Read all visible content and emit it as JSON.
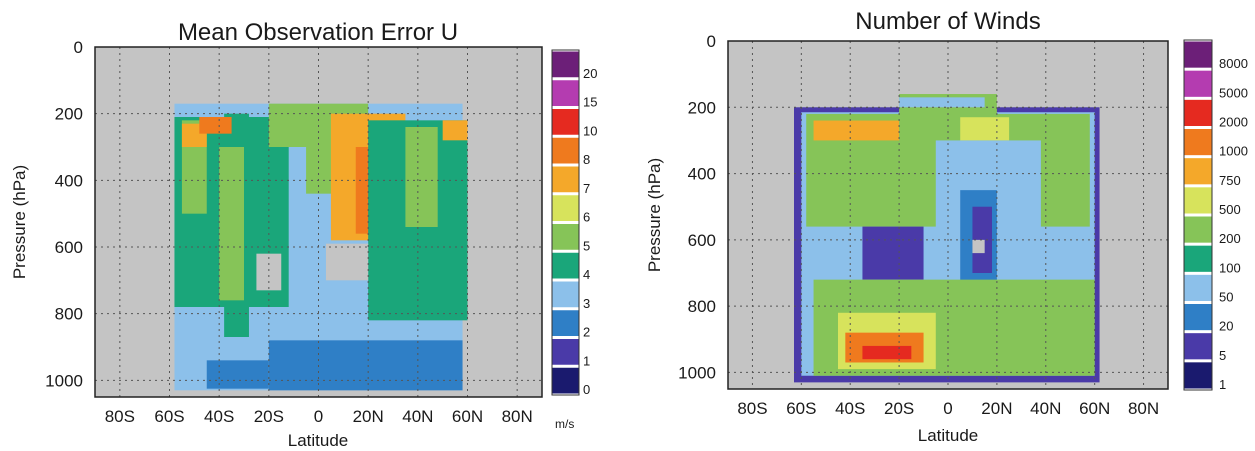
{
  "chart_data": [
    {
      "type": "heatmap",
      "title": "Mean Observation Error U",
      "xlabel": "Latitude",
      "ylabel": "Pressure (hPa)",
      "x_ticks": [
        "80S",
        "60S",
        "40S",
        "20S",
        "0",
        "20N",
        "40N",
        "60N",
        "80N"
      ],
      "y_ticks": [
        "0",
        "200",
        "400",
        "600",
        "800",
        "1000"
      ],
      "xlim": [
        -90,
        90
      ],
      "ylim": [
        1050,
        0
      ],
      "grid": true,
      "colorbar": {
        "labels": [
          "0",
          "1",
          "2",
          "3",
          "4",
          "5",
          "6",
          "7",
          "8",
          "10",
          "15",
          "20"
        ],
        "colors": [
          "#1a1a6e",
          "#4a3aa8",
          "#2f7fc6",
          "#8cc0ea",
          "#1aa67a",
          "#86c458",
          "#d7e35c",
          "#f4a82a",
          "#ef7a1e",
          "#e52a20",
          "#b43cb0",
          "#6c1f78"
        ],
        "unit": "m/s"
      },
      "regions": [
        {
          "lat": [
            -58,
            58
          ],
          "p": [
            170,
            1030
          ],
          "level": 3
        },
        {
          "lat": [
            -20,
            58
          ],
          "p": [
            880,
            1030
          ],
          "level": 2
        },
        {
          "lat": [
            -45,
            -20
          ],
          "p": [
            940,
            1025
          ],
          "level": 2
        },
        {
          "lat": [
            -58,
            -12
          ],
          "p": [
            210,
            780
          ],
          "level": 4
        },
        {
          "lat": [
            -38,
            -28
          ],
          "p": [
            200,
            870
          ],
          "level": 4
        },
        {
          "lat": [
            -55,
            -45
          ],
          "p": [
            220,
            500
          ],
          "level": 5
        },
        {
          "lat": [
            -40,
            -30
          ],
          "p": [
            300,
            760
          ],
          "level": 5
        },
        {
          "lat": [
            -55,
            -45
          ],
          "p": [
            230,
            300
          ],
          "level": 7
        },
        {
          "lat": [
            -48,
            -35
          ],
          "p": [
            210,
            260
          ],
          "level": 8
        },
        {
          "lat": [
            -20,
            20
          ],
          "p": [
            170,
            300
          ],
          "level": 5
        },
        {
          "lat": [
            -5,
            10
          ],
          "p": [
            220,
            440
          ],
          "level": 5
        },
        {
          "lat": [
            5,
            35
          ],
          "p": [
            200,
            580
          ],
          "level": 7
        },
        {
          "lat": [
            15,
            28
          ],
          "p": [
            300,
            560
          ],
          "level": 8
        },
        {
          "lat": [
            20,
            60
          ],
          "p": [
            220,
            820
          ],
          "level": 4
        },
        {
          "lat": [
            35,
            48
          ],
          "p": [
            240,
            540
          ],
          "level": 5
        },
        {
          "lat": [
            50,
            60
          ],
          "p": [
            220,
            280
          ],
          "level": 7
        },
        {
          "lat": [
            3,
            20
          ],
          "p": [
            590,
            700
          ],
          "level": -1
        },
        {
          "lat": [
            -25,
            -15
          ],
          "p": [
            620,
            730
          ],
          "level": -1
        }
      ]
    },
    {
      "type": "heatmap",
      "title": "Number of Winds",
      "xlabel": "Latitude",
      "ylabel": "Pressure (hPa)",
      "x_ticks": [
        "80S",
        "60S",
        "40S",
        "20S",
        "0",
        "20N",
        "40N",
        "60N",
        "80N"
      ],
      "y_ticks": [
        "0",
        "200",
        "400",
        "600",
        "800",
        "1000"
      ],
      "xlim": [
        -90,
        90
      ],
      "ylim": [
        1050,
        0
      ],
      "grid": true,
      "colorbar": {
        "labels": [
          "1",
          "5",
          "20",
          "50",
          "100",
          "200",
          "500",
          "750",
          "1000",
          "2000",
          "5000",
          "8000"
        ],
        "colors": [
          "#1a1a6e",
          "#4a3aa8",
          "#2f7fc6",
          "#8cc0ea",
          "#1aa67a",
          "#86c458",
          "#d7e35c",
          "#f4a82a",
          "#ef7a1e",
          "#e52a20",
          "#b43cb0",
          "#6c1f78"
        ],
        "unit": ""
      },
      "regions": [
        {
          "lat": [
            -63,
            62
          ],
          "p": [
            200,
            1030
          ],
          "level": 1
        },
        {
          "lat": [
            -60,
            60
          ],
          "p": [
            215,
            1010
          ],
          "level": 3
        },
        {
          "lat": [
            -58,
            58
          ],
          "p": [
            220,
            560
          ],
          "level": 5
        },
        {
          "lat": [
            -20,
            20
          ],
          "p": [
            160,
            240
          ],
          "level": 5
        },
        {
          "lat": [
            -20,
            15
          ],
          "p": [
            170,
            200
          ],
          "level": 3
        },
        {
          "lat": [
            -55,
            -20
          ],
          "p": [
            240,
            300
          ],
          "level": 7
        },
        {
          "lat": [
            5,
            25
          ],
          "p": [
            230,
            300
          ],
          "level": 6
        },
        {
          "lat": [
            -5,
            38
          ],
          "p": [
            300,
            820
          ],
          "level": 3
        },
        {
          "lat": [
            5,
            20
          ],
          "p": [
            450,
            800
          ],
          "level": 2
        },
        {
          "lat": [
            10,
            18
          ],
          "p": [
            500,
            700
          ],
          "level": 1
        },
        {
          "lat": [
            -35,
            -10
          ],
          "p": [
            560,
            720
          ],
          "level": 1
        },
        {
          "lat": [
            -55,
            60
          ],
          "p": [
            720,
            1010
          ],
          "level": 5
        },
        {
          "lat": [
            -45,
            -5
          ],
          "p": [
            820,
            990
          ],
          "level": 6
        },
        {
          "lat": [
            -42,
            -10
          ],
          "p": [
            880,
            970
          ],
          "level": 8
        },
        {
          "lat": [
            -35,
            -15
          ],
          "p": [
            920,
            960
          ],
          "level": 9
        },
        {
          "lat": [
            10,
            15
          ],
          "p": [
            600,
            640
          ],
          "level": -1
        }
      ]
    }
  ]
}
